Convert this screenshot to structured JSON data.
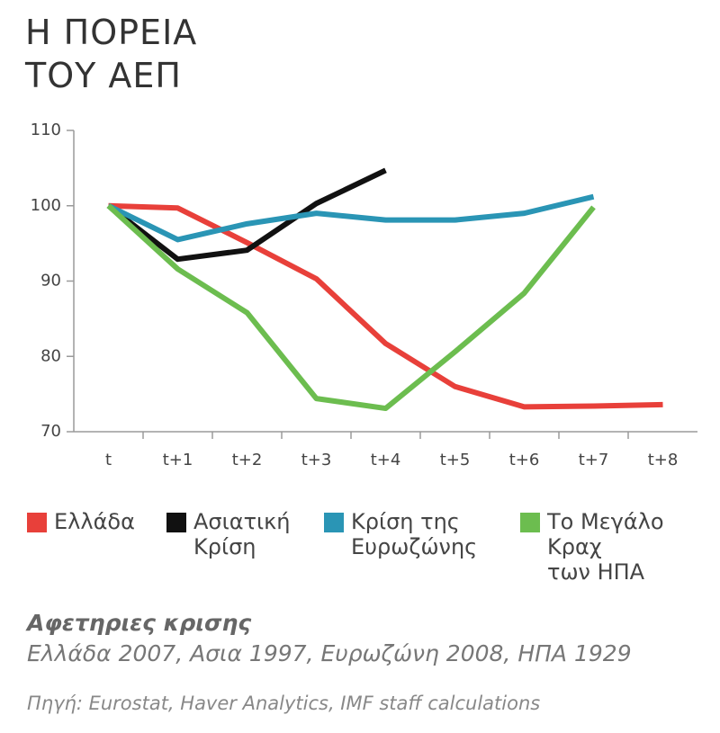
{
  "chart_data": {
    "type": "line",
    "title_lines": [
      "Η ΠΟΡΕΙΑ",
      "ΤΟΥ ΑΕΠ"
    ],
    "categories": [
      "t",
      "t+1",
      "t+2",
      "t+3",
      "t+4",
      "t+5",
      "t+6",
      "t+7",
      "t+8"
    ],
    "series": [
      {
        "name": "Ελλάδα",
        "color": "#e8403a",
        "values": [
          100,
          99.7,
          95.1,
          90.3,
          81.7,
          76,
          73.3,
          73.4,
          73.6
        ]
      },
      {
        "name": "Ασιατική\nΚρίση",
        "color": "#111111",
        "values": [
          100,
          92.9,
          94.1,
          100.3,
          104.7,
          null,
          null,
          null,
          null
        ]
      },
      {
        "name": "Κρίση της\nΕυρωζώνης",
        "color": "#2a95b5",
        "values": [
          100,
          95.5,
          97.6,
          99,
          98.1,
          98.1,
          99,
          101.2,
          null
        ]
      },
      {
        "name": "Το Μεγάλο\nΚραχ\nτων ΗΠΑ",
        "color": "#6cbd4f",
        "values": [
          100,
          91.6,
          85.8,
          74.4,
          73.1,
          80.6,
          88.4,
          99.8,
          null
        ]
      }
    ],
    "ylim": [
      70,
      110
    ],
    "yticks": [
      70,
      80,
      90,
      100,
      110
    ],
    "grid": false,
    "subtitle": "Αφετηριες κρισης",
    "note": "Ελλάδα 2007, Ασια 1997, Ευρωζώνη 2008, ΗΠΑ 1929",
    "source": "Πηγή: Eurostat, Haver Analytics, IMF staff calculations"
  }
}
